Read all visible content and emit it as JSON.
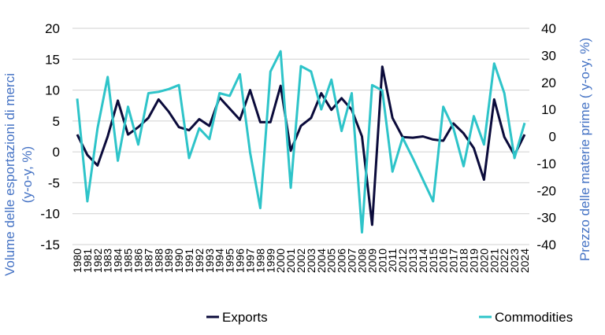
{
  "chart_data": {
    "type": "line",
    "x": [
      "1980",
      "1981",
      "1982",
      "1983",
      "1984",
      "1985",
      "1986",
      "1987",
      "1988",
      "1989",
      "1990",
      "1991",
      "1992",
      "1993",
      "1994",
      "1995",
      "1996",
      "1997",
      "1998",
      "1999",
      "2000",
      "2001",
      "2002",
      "2003",
      "2004",
      "2005",
      "2006",
      "2007",
      "2008",
      "2009",
      "2010",
      "2011",
      "2012",
      "2013",
      "2014",
      "2015",
      "2016",
      "2017",
      "2018",
      "2019",
      "2020",
      "2021",
      "2022",
      "2023",
      "2024"
    ],
    "series": [
      {
        "name": "Exports",
        "axis": "left",
        "color": "#0B0B3B",
        "values": [
          2.8,
          -0.5,
          -2.2,
          2.5,
          8.3,
          2.8,
          4.0,
          5.5,
          8.5,
          6.5,
          4.0,
          3.5,
          5.3,
          4.2,
          8.8,
          7.0,
          5.2,
          10.0,
          4.8,
          4.8,
          10.7,
          0.2,
          4.2,
          5.5,
          9.5,
          6.8,
          8.7,
          6.8,
          2.5,
          -11.8,
          13.8,
          5.5,
          2.4,
          2.3,
          2.5,
          2.0,
          1.8,
          4.6,
          3.0,
          0.6,
          -4.5,
          8.5,
          2.4,
          -0.5,
          2.8
        ]
      },
      {
        "name": "Commodities",
        "axis": "right",
        "color": "#2EC4C9",
        "values": [
          14,
          -24,
          3,
          22,
          -9,
          11,
          -3,
          16,
          16.5,
          17.5,
          19,
          -8,
          3,
          -1,
          16,
          15,
          23,
          -6,
          -26.5,
          24,
          31.5,
          -19,
          26,
          24,
          10,
          21,
          2,
          16,
          -35.5,
          19,
          17,
          -13,
          -0.5,
          -8,
          -16,
          -24,
          11,
          3,
          -11,
          7.5,
          -3,
          27,
          16,
          -8,
          5
        ]
      }
    ],
    "left_axis": {
      "label": "Volume delle esportazioni di merci (y-o-y, %)",
      "ylim": [
        -15,
        20
      ],
      "ticks": [
        "20",
        "15",
        "10",
        "5",
        "0",
        "-5",
        "-10",
        "-15"
      ]
    },
    "right_axis": {
      "label": "Prezzo delle materie prime ( y-o-y, %)",
      "ylim": [
        -40,
        40
      ],
      "ticks": [
        "40",
        "30",
        "20",
        "10",
        "0",
        "-10",
        "-20",
        "-30",
        "-40"
      ]
    },
    "grid": true,
    "legend": {
      "position": "bottom",
      "entries": [
        "Exports",
        "Commodities"
      ]
    }
  }
}
